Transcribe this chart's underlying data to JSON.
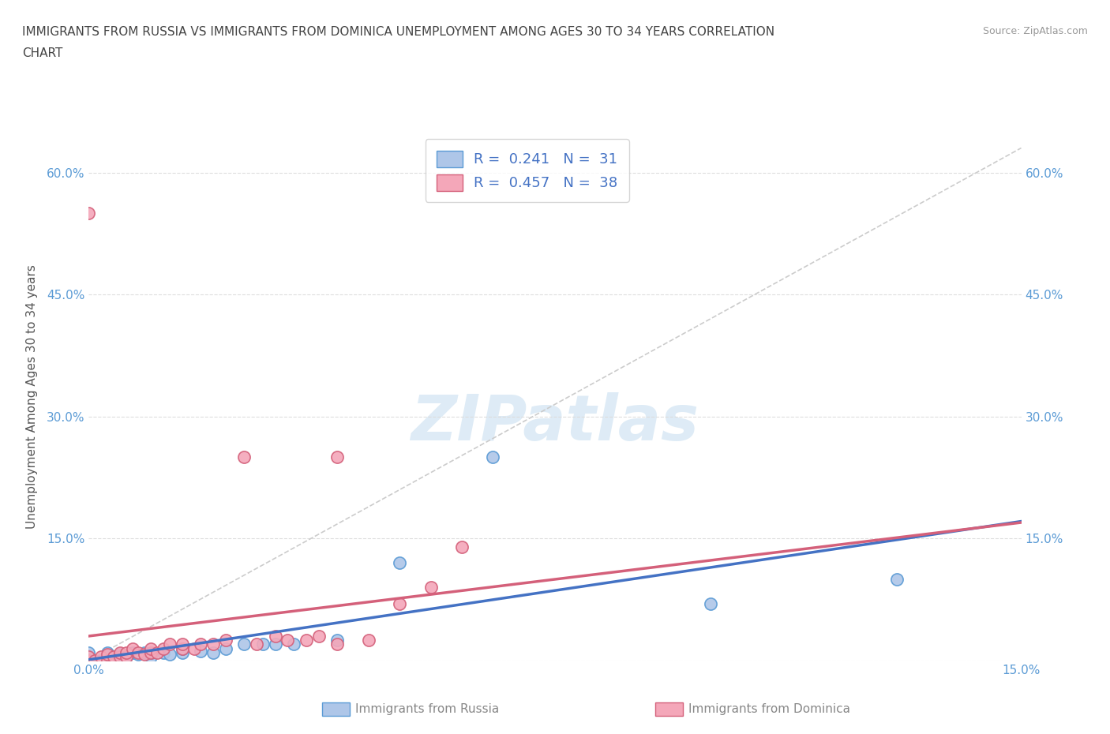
{
  "title_line1": "IMMIGRANTS FROM RUSSIA VS IMMIGRANTS FROM DOMINICA UNEMPLOYMENT AMONG AGES 30 TO 34 YEARS CORRELATION",
  "title_line2": "CHART",
  "source": "Source: ZipAtlas.com",
  "ylabel": "Unemployment Among Ages 30 to 34 years",
  "xlim": [
    0.0,
    0.15
  ],
  "ylim": [
    0.0,
    0.65
  ],
  "x_ticks": [
    0.0,
    0.03,
    0.06,
    0.09,
    0.12,
    0.15
  ],
  "y_ticks": [
    0.0,
    0.15,
    0.3,
    0.45,
    0.6
  ],
  "russia_color": "#aec6e8",
  "russia_edge_color": "#5b9bd5",
  "dominica_color": "#f4a7b9",
  "dominica_edge_color": "#d4607a",
  "russia_line_color": "#4472c4",
  "dominica_line_color": "#d4607a",
  "diagonal_color": "#cccccc",
  "background_color": "#ffffff",
  "grid_color": "#dddddd",
  "watermark_color": "#c8dff0",
  "R_russia": 0.241,
  "N_russia": 31,
  "R_dominica": 0.457,
  "N_dominica": 38,
  "russia_x": [
    0.0,
    0.0,
    0.0,
    0.002,
    0.003,
    0.003,
    0.004,
    0.005,
    0.005,
    0.006,
    0.007,
    0.008,
    0.009,
    0.01,
    0.01,
    0.012,
    0.013,
    0.015,
    0.015,
    0.018,
    0.02,
    0.022,
    0.025,
    0.028,
    0.03,
    0.033,
    0.04,
    0.05,
    0.065,
    0.1,
    0.13
  ],
  "russia_y": [
    0.0,
    0.005,
    0.01,
    0.0,
    0.005,
    0.01,
    0.005,
    0.0,
    0.008,
    0.005,
    0.01,
    0.008,
    0.01,
    0.005,
    0.01,
    0.01,
    0.008,
    0.01,
    0.015,
    0.012,
    0.01,
    0.015,
    0.02,
    0.02,
    0.02,
    0.02,
    0.025,
    0.12,
    0.25,
    0.07,
    0.1
  ],
  "dominica_x": [
    0.0,
    0.0,
    0.0,
    0.001,
    0.002,
    0.003,
    0.003,
    0.004,
    0.005,
    0.005,
    0.006,
    0.006,
    0.007,
    0.008,
    0.009,
    0.01,
    0.01,
    0.011,
    0.012,
    0.013,
    0.015,
    0.015,
    0.017,
    0.018,
    0.02,
    0.022,
    0.025,
    0.027,
    0.03,
    0.032,
    0.035,
    0.037,
    0.04,
    0.04,
    0.045,
    0.05,
    0.055,
    0.06
  ],
  "dominica_y": [
    0.0,
    0.005,
    0.55,
    0.0,
    0.005,
    0.0,
    0.008,
    0.005,
    0.005,
    0.01,
    0.005,
    0.01,
    0.015,
    0.01,
    0.008,
    0.01,
    0.015,
    0.01,
    0.015,
    0.02,
    0.015,
    0.02,
    0.015,
    0.02,
    0.02,
    0.025,
    0.25,
    0.02,
    0.03,
    0.025,
    0.025,
    0.03,
    0.02,
    0.25,
    0.025,
    0.07,
    0.09,
    0.14
  ],
  "legend_russia_label": "R =  0.241   N =  31",
  "legend_dominica_label": "R =  0.457   N =  38",
  "bottom_label_russia": "Immigrants from Russia",
  "bottom_label_dominica": "Immigrants from Dominica"
}
